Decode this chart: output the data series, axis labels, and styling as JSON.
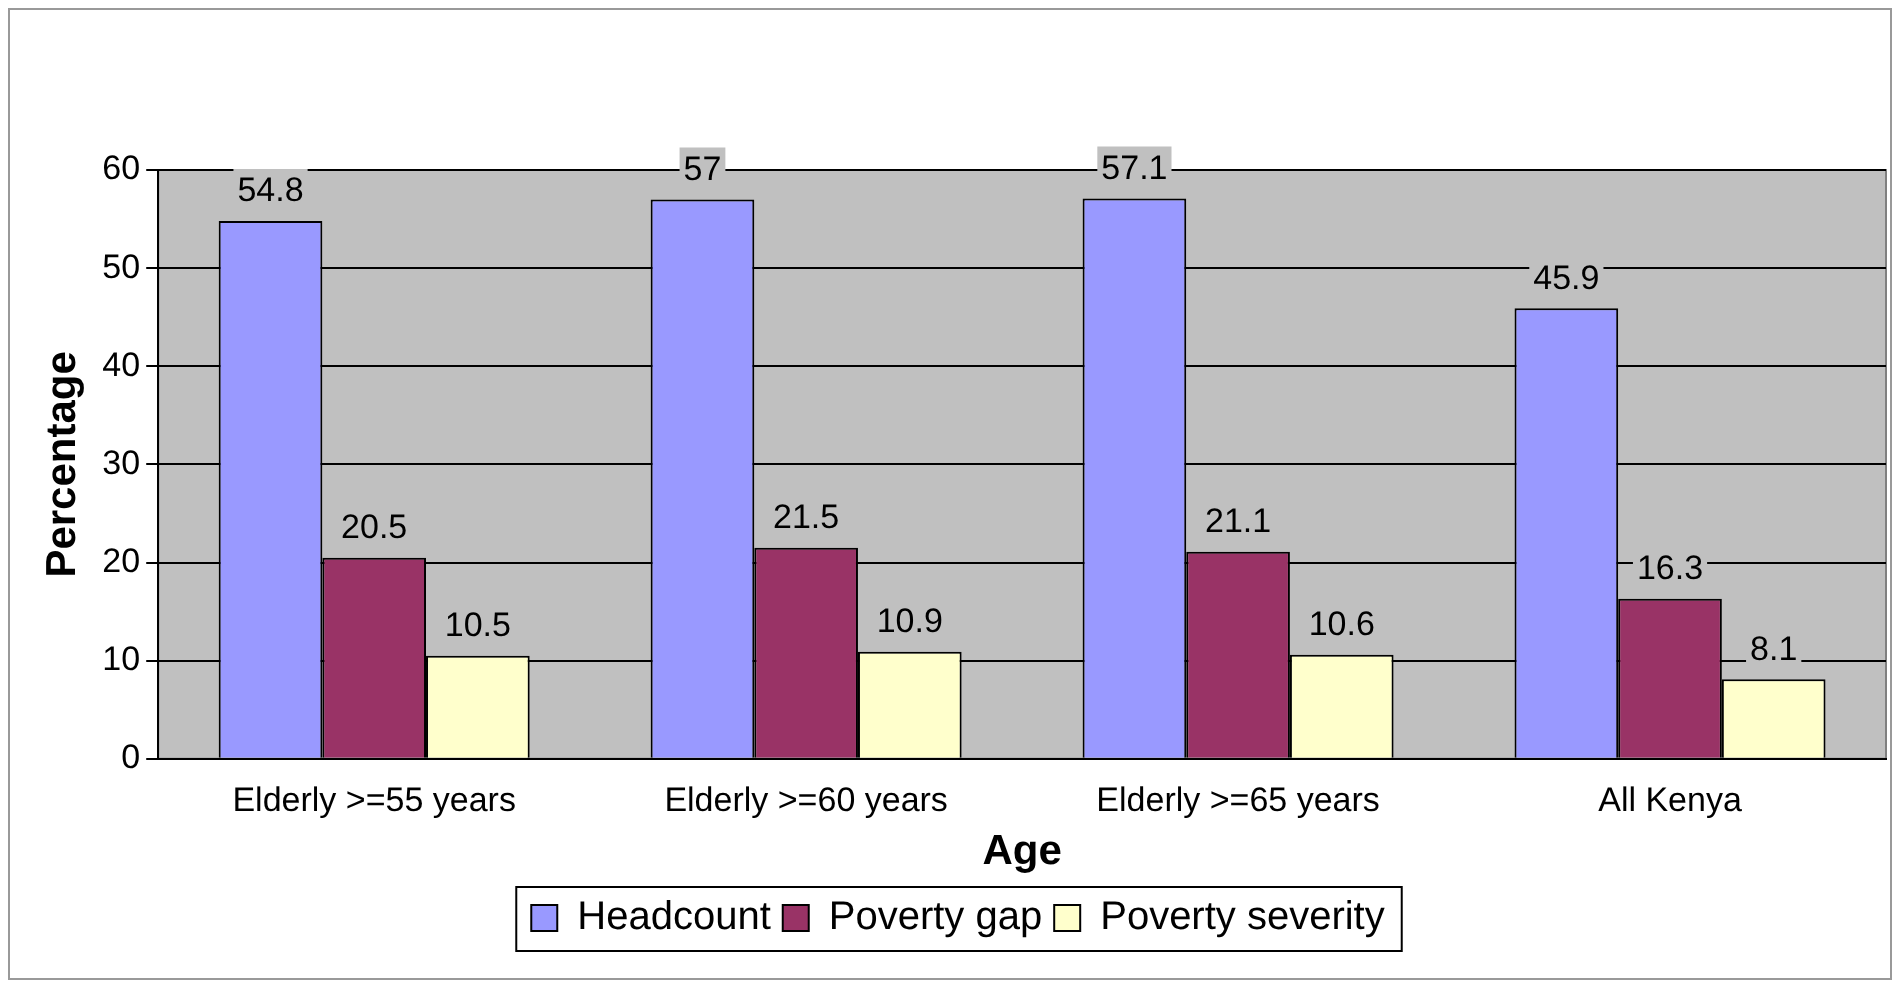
{
  "chart_data": {
    "type": "bar",
    "xlabel": "Age",
    "ylabel": "Percentage",
    "categories": [
      "Elderly >=55 years",
      "Elderly >=60 years",
      "Elderly >=65 years",
      "All Kenya"
    ],
    "series": [
      {
        "name": "Headcount",
        "color": "#9999ff",
        "values": [
          54.8,
          57,
          57.1,
          45.9
        ]
      },
      {
        "name": "Poverty gap",
        "color": "#993366",
        "values": [
          20.5,
          21.5,
          21.1,
          16.3
        ]
      },
      {
        "name": "Poverty severity",
        "color": "#ffffcc",
        "values": [
          10.5,
          10.9,
          10.6,
          8.1
        ]
      }
    ],
    "ylim": [
      0,
      60
    ],
    "yticks": [
      0,
      10,
      20,
      30,
      40,
      50,
      60
    ],
    "grid": "y",
    "legend": "bottom",
    "data_labels": true
  }
}
